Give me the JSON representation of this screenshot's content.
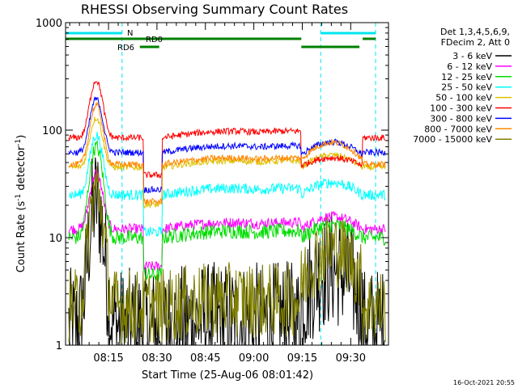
{
  "chart_data": {
    "type": "line",
    "title": "RHESSI Observing Summary Count Rates",
    "xlabel": "Start Time (25-Aug-06 08:01:42)",
    "ylabel_main": "Count Rate (s",
    "ylabel_sup1": "-1",
    "ylabel_mid": " detector",
    "ylabel_sup2": "-1",
    "ylabel_end": ")",
    "yscale": "log",
    "ylim": [
      1,
      1000
    ],
    "xlim_minutes": [
      0,
      100
    ],
    "x_tick_labels": [
      "08:15",
      "08:30",
      "08:45",
      "09:00",
      "09:15",
      "09:30"
    ],
    "x_tick_minutes": [
      13.3,
      28.3,
      43.3,
      58.3,
      73.3,
      88.3
    ],
    "y_tick_labels": [
      "1",
      "10",
      "100",
      "1000"
    ],
    "y_tick_values": [
      1,
      10,
      100,
      1000
    ],
    "timestamp": "16-Oct-2021 20:55",
    "legend": {
      "header1": "Det 1,3,4,5,6,9,",
      "header2": "FDecim 2, Att 0",
      "placement": "right"
    },
    "annotations": {
      "n_label": "N",
      "rd0_label": "RD0",
      "rd6_label": "RD6",
      "cyan_vlines_minutes": [
        0,
        17.5,
        79,
        96
      ],
      "n_segments": [
        [
          0,
          17.5
        ],
        [
          79,
          96
        ]
      ],
      "rd0_segments": [
        [
          0,
          73
        ],
        [
          92,
          96
        ]
      ],
      "rd6_segments": [
        [
          23,
          29
        ],
        [
          73,
          91
        ]
      ],
      "cyan_color": "#00e5ee",
      "green_color": "#008000"
    },
    "series": [
      {
        "name": "3 - 6 keV",
        "color": "#000000",
        "base": 1.5,
        "flare": 22,
        "noise": 0.55
      },
      {
        "name": "6 - 12 keV",
        "color": "#ff00ff",
        "base": 12,
        "flare": 40,
        "noise": 0.05
      },
      {
        "name": "12 - 25 keV",
        "color": "#00dd00",
        "base": 10,
        "flare": 70,
        "noise": 0.07
      },
      {
        "name": "25 - 50 keV",
        "color": "#00ffff",
        "base": 25,
        "flare": 90,
        "noise": 0.05
      },
      {
        "name": "50 - 100 keV",
        "color": "#e0c000",
        "base": 45,
        "flare": 130,
        "noise": 0.03
      },
      {
        "name": "100 - 300 keV",
        "color": "#ff0000",
        "base": 85,
        "flare": 290,
        "noise": 0.03
      },
      {
        "name": "300 - 800 keV",
        "color": "#0000ff",
        "base": 62,
        "flare": 195,
        "noise": 0.03
      },
      {
        "name": "800 - 7000 keV",
        "color": "#ff8800",
        "base": 48,
        "flare": 170,
        "noise": 0.03
      },
      {
        "name": "7000 - 15000 keV",
        "color": "#808000",
        "base": 2.3,
        "flare": 28,
        "noise": 0.35
      }
    ]
  }
}
